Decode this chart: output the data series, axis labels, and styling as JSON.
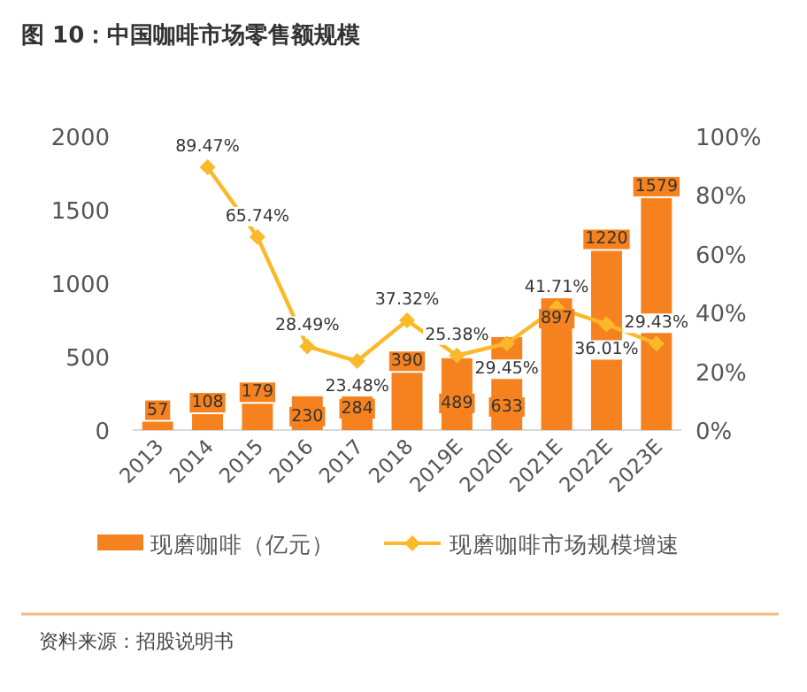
{
  "chart_data": {
    "type": "bar",
    "title": "图 10：中国咖啡市场零售额规模",
    "categories": [
      "2013",
      "2014",
      "2015",
      "2016",
      "2017",
      "2018",
      "2019E",
      "2020E",
      "2021E",
      "2022E",
      "2023E"
    ],
    "series": [
      {
        "name": "现磨咖啡（亿元）",
        "color": "#f5821f",
        "values": [
          57,
          108,
          179,
          230,
          284,
          390,
          489,
          633,
          897,
          1220,
          1579
        ]
      },
      {
        "name": "现磨咖啡市场规模增速",
        "type": "line",
        "axis": "y2",
        "color": "#fbb829",
        "marker": "diamond",
        "values": [
          null,
          89.47,
          65.74,
          28.49,
          23.48,
          37.32,
          25.38,
          29.45,
          41.71,
          36.01,
          29.43
        ],
        "value_labels": [
          null,
          "89.47%",
          "65.74%",
          "28.49%",
          "23.48%",
          "37.32%",
          "25.38%",
          "29.45%",
          "41.71%",
          "36.01%",
          "29.43%"
        ]
      }
    ],
    "data_labels": true,
    "ylim": [
      0,
      2000
    ],
    "yticks": [
      0,
      500,
      1000,
      1500,
      2000
    ],
    "y2lim": [
      0,
      100
    ],
    "y2ticks": [
      {
        "value": 0,
        "label": "0%"
      },
      {
        "value": 20,
        "label": "20%"
      },
      {
        "value": 40,
        "label": "40%"
      },
      {
        "value": 60,
        "label": "60%"
      },
      {
        "value": 80,
        "label": "80%"
      },
      {
        "value": 100,
        "label": "100%"
      }
    ],
    "grid": false,
    "legend": "bottom",
    "annotations": [
      "资料来源：招股说明书"
    ]
  }
}
